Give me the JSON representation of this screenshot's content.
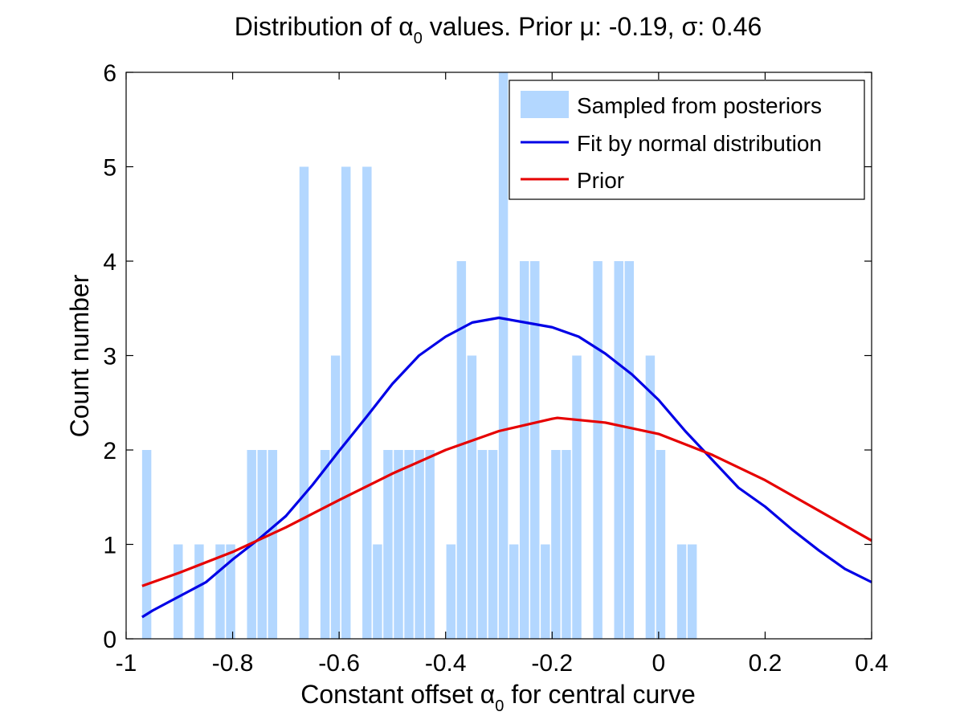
{
  "chart_data": {
    "type": "bar",
    "title": {
      "pre": "Distribution of ",
      "sym": "α",
      "sub": "0",
      "post": " values. Prior ",
      "mu_sym": "μ",
      "mu_val": ": -0.19, ",
      "sigma_sym": "σ",
      "sigma_val": ": 0.46"
    },
    "xlabel": {
      "pre": "Constant offset ",
      "sym": "α",
      "sub": "0",
      "post": " for central curve"
    },
    "ylabel": "Count number",
    "xlim": [
      -1,
      0.4
    ],
    "ylim": [
      0,
      6
    ],
    "xticks": [
      -1,
      -0.8,
      -0.6,
      -0.4,
      -0.2,
      0,
      0.2,
      0.4
    ],
    "xtick_labels": [
      "-1",
      "-0.8",
      "-0.6",
      "-0.4",
      "-0.2",
      "0",
      "0.2",
      "0.4"
    ],
    "yticks": [
      0,
      1,
      2,
      3,
      4,
      5,
      6
    ],
    "ytick_labels": [
      "0",
      "1",
      "2",
      "3",
      "4",
      "5",
      "6"
    ],
    "grid": false,
    "legend_position": "top-right",
    "bin_start": -0.97,
    "bin_width": 0.0197,
    "counts": [
      2,
      0,
      0,
      1,
      0,
      1,
      0,
      1,
      1,
      0,
      2,
      2,
      2,
      0,
      0,
      5,
      0,
      2,
      3,
      5,
      0,
      5,
      1,
      2,
      2,
      2,
      2,
      2,
      0,
      1,
      4,
      3,
      2,
      2,
      6,
      1,
      4,
      4,
      1,
      2,
      2,
      3,
      0,
      4,
      0,
      4,
      4,
      0,
      3,
      2,
      0,
      1,
      1
    ],
    "series": [
      {
        "name": "Sampled from posteriors",
        "kind": "histogram",
        "color": "#b3d7ff"
      },
      {
        "name": "Fit by normal distribution",
        "kind": "line",
        "color": "#0000e6",
        "x": [
          -0.97,
          -0.95,
          -0.9,
          -0.85,
          -0.8,
          -0.75,
          -0.7,
          -0.65,
          -0.6,
          -0.55,
          -0.5,
          -0.45,
          -0.4,
          -0.35,
          -0.3,
          -0.25,
          -0.2,
          -0.15,
          -0.1,
          -0.05,
          0,
          0.05,
          0.1,
          0.15,
          0.2,
          0.25,
          0.3,
          0.35,
          0.4
        ],
        "y": [
          0.23,
          0.3,
          0.45,
          0.6,
          0.84,
          1.06,
          1.3,
          1.63,
          1.99,
          2.34,
          2.7,
          3.0,
          3.2,
          3.35,
          3.4,
          3.35,
          3.3,
          3.2,
          3.02,
          2.8,
          2.53,
          2.2,
          1.9,
          1.6,
          1.4,
          1.16,
          0.94,
          0.74,
          0.6
        ]
      },
      {
        "name": "Prior",
        "kind": "line",
        "color": "#e60000",
        "x": [
          -0.97,
          -0.9,
          -0.8,
          -0.7,
          -0.6,
          -0.5,
          -0.4,
          -0.3,
          -0.2,
          -0.19,
          -0.1,
          0,
          0.1,
          0.2,
          0.3,
          0.4
        ],
        "y": [
          0.56,
          0.7,
          0.92,
          1.18,
          1.47,
          1.75,
          2.0,
          2.2,
          2.33,
          2.34,
          2.29,
          2.17,
          1.95,
          1.68,
          1.36,
          1.04
        ]
      }
    ]
  }
}
